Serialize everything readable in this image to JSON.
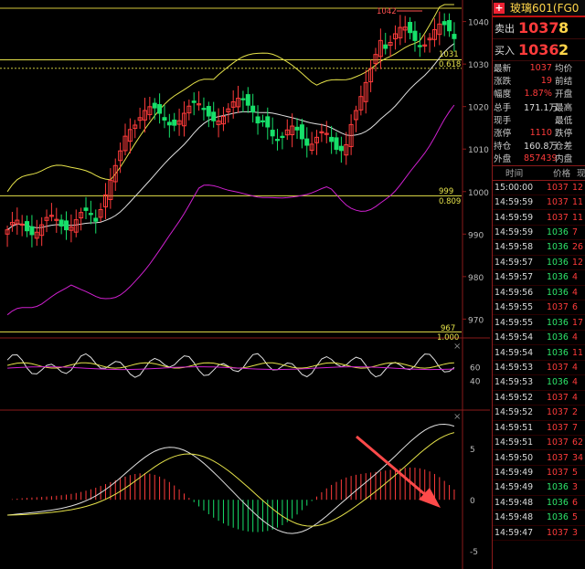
{
  "instrument": {
    "title": "玻璃601(FG0",
    "plus_icon": "+"
  },
  "orderbook": {
    "ask_label": "卖出",
    "ask_price": "1037",
    "ask_qty": "8",
    "bid_label": "买入",
    "bid_price": "1036",
    "bid_qty": "2"
  },
  "quote": [
    {
      "k": "最新",
      "v": "1037",
      "k2": "均价",
      "vc": "red"
    },
    {
      "k": "涨跌",
      "v": "19",
      "k2": "前结",
      "vc": "red"
    },
    {
      "k": "幅度",
      "v": "1.87%",
      "k2": "开盘",
      "vc": "red"
    },
    {
      "k": "总手",
      "v": "171.1万",
      "k2": "最高",
      "vc": "wht"
    },
    {
      "k": "现手",
      "v": "",
      "k2": "最低",
      "vc": "wht"
    },
    {
      "k": "涨停",
      "v": "1110",
      "k2": "跌停",
      "vc": "red"
    },
    {
      "k": "持仓",
      "v": "160.8万",
      "k2": "仓差",
      "vc": "wht"
    },
    {
      "k": "外盘",
      "v": "857439",
      "k2": "内盘",
      "vc": "red"
    }
  ],
  "ticks_header": {
    "time": "时间",
    "price": "价格",
    "vol": "现"
  },
  "ticks": [
    {
      "t": "15:00:00",
      "p": "1037",
      "v": "12",
      "c": "red"
    },
    {
      "t": "14:59:59",
      "p": "1037",
      "v": "11",
      "c": "red"
    },
    {
      "t": "14:59:59",
      "p": "1037",
      "v": "11",
      "c": "red"
    },
    {
      "t": "14:59:59",
      "p": "1036",
      "v": "7",
      "c": "grn"
    },
    {
      "t": "14:59:58",
      "p": "1036",
      "v": "26",
      "c": "grn"
    },
    {
      "t": "14:59:57",
      "p": "1036",
      "v": "12",
      "c": "grn"
    },
    {
      "t": "14:59:57",
      "p": "1036",
      "v": "4",
      "c": "grn"
    },
    {
      "t": "14:59:56",
      "p": "1036",
      "v": "4",
      "c": "grn"
    },
    {
      "t": "14:59:55",
      "p": "1037",
      "v": "6",
      "c": "red"
    },
    {
      "t": "14:59:55",
      "p": "1036",
      "v": "17",
      "c": "grn"
    },
    {
      "t": "14:59:54",
      "p": "1036",
      "v": "4",
      "c": "grn"
    },
    {
      "t": "14:59:54",
      "p": "1036",
      "v": "11",
      "c": "grn"
    },
    {
      "t": "14:59:53",
      "p": "1037",
      "v": "4",
      "c": "red"
    },
    {
      "t": "14:59:53",
      "p": "1036",
      "v": "4",
      "c": "grn"
    },
    {
      "t": "14:59:52",
      "p": "1037",
      "v": "4",
      "c": "red"
    },
    {
      "t": "14:59:52",
      "p": "1037",
      "v": "2",
      "c": "red"
    },
    {
      "t": "14:59:51",
      "p": "1037",
      "v": "7",
      "c": "red"
    },
    {
      "t": "14:59:51",
      "p": "1037",
      "v": "62",
      "c": "red"
    },
    {
      "t": "14:59:50",
      "p": "1037",
      "v": "34",
      "c": "red"
    },
    {
      "t": "14:59:49",
      "p": "1037",
      "v": "5",
      "c": "red"
    },
    {
      "t": "14:59:49",
      "p": "1036",
      "v": "3",
      "c": "grn"
    },
    {
      "t": "14:59:48",
      "p": "1036",
      "v": "6",
      "c": "grn"
    },
    {
      "t": "14:59:48",
      "p": "1036",
      "v": "5",
      "c": "grn"
    },
    {
      "t": "14:59:47",
      "p": "1037",
      "v": "3",
      "c": "red"
    }
  ],
  "chart_data": {
    "type": "candlestick",
    "price_axis": {
      "ticks": [
        "1040",
        "1030",
        "1020",
        "1010",
        "1000",
        "990",
        "980",
        "970"
      ],
      "range": [
        966,
        1044
      ]
    },
    "level_lines": [
      {
        "value": 1031,
        "ratio": "0.618"
      },
      {
        "value": 1029,
        "ratio": ""
      },
      {
        "value": 999,
        "ratio": "0.809"
      },
      {
        "value": 967,
        "ratio": "1.000"
      }
    ],
    "level_labels": [
      "1031",
      "0.618",
      "999",
      "0.809",
      "967",
      "1.000"
    ],
    "high_marker": "1042",
    "indicator_axis": {
      "ticks": [
        "60",
        "40"
      ]
    },
    "macd_axis": {
      "ticks": [
        "5",
        "0",
        "-5"
      ],
      "range": [
        -6.5,
        8.5
      ]
    },
    "close_icons": [
      "×",
      "×"
    ],
    "colors": {
      "up": "#ff3b3b",
      "down": "#17e06a",
      "boll": "#e6e34a",
      "mid": "#e0e0e0",
      "lower": "#d020d0",
      "level": "#e6e34a",
      "arrow": "#ff4a4a"
    }
  }
}
